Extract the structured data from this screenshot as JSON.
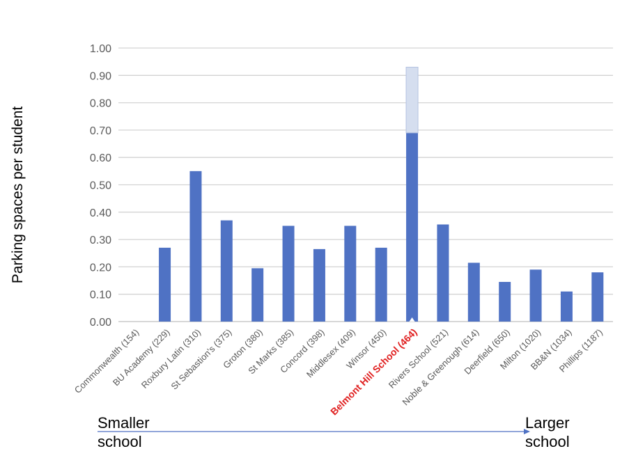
{
  "chart_data": {
    "type": "bar",
    "ylabel": "Parking spaces per student",
    "ylim": [
      0,
      1.0
    ],
    "yticks": [
      "0.00",
      "0.10",
      "0.20",
      "0.30",
      "0.40",
      "0.50",
      "0.60",
      "0.70",
      "0.80",
      "0.90",
      "1.00"
    ],
    "grid": true,
    "categories": [
      "Commonwealth (154)",
      "BU Academy (229)",
      "Roxbury Latin (310)",
      "St Sebastion's (375)",
      "Groton (380)",
      "St Marks (385)",
      "Concord (398)",
      "Middlesex (409)",
      "Winsor (450)",
      "Belmont Hill School (464)",
      "Rivers School (521)",
      "Noble & Greenough (614)",
      "Deerfield (650)",
      "Milton (1020)",
      "BB&N (1034)",
      "Phillips (1187)"
    ],
    "highlight_category": "Belmont Hill School (464)",
    "series": [
      {
        "values": [
          0,
          0.27,
          0.55,
          0.37,
          0.195,
          0.35,
          0.265,
          0.35,
          0.27,
          0.69,
          0.355,
          0.215,
          0.145,
          0.19,
          0.11,
          0.18
        ]
      },
      {
        "values": [
          0,
          0,
          0,
          0,
          0,
          0,
          0,
          0,
          0,
          0.24,
          0,
          0,
          0,
          0,
          0,
          0
        ]
      }
    ],
    "colors": {
      "bar": "#4f72c4",
      "bar_extra": "#d5deef",
      "highlight_label": "#e02020",
      "grid": "#d3d3d3",
      "tick": "#595959"
    }
  },
  "annotations": {
    "left": [
      "Smaller",
      "school"
    ],
    "right": [
      "Larger",
      "school"
    ]
  }
}
